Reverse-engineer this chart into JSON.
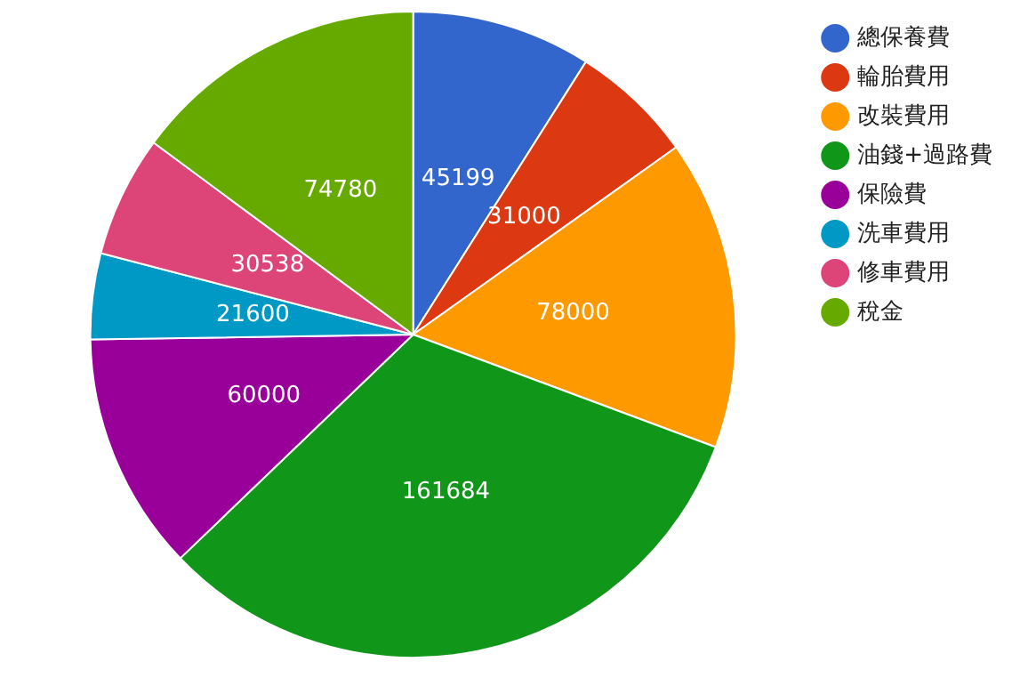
{
  "chart_data": {
    "type": "pie",
    "categories": [
      "總保養費",
      "輪胎費用",
      "改裝費用",
      "油錢+過路費",
      "保險費",
      "洗車費用",
      "修車費用",
      "稅金"
    ],
    "values": [
      45199,
      31000,
      78000,
      161684,
      60000,
      21600,
      30538,
      74780
    ],
    "colors": [
      "#3366cc",
      "#dc3912",
      "#ff9900",
      "#109618",
      "#990099",
      "#0099c6",
      "#dd4477",
      "#66aa00"
    ],
    "data_labels": true,
    "legend": "top right"
  }
}
